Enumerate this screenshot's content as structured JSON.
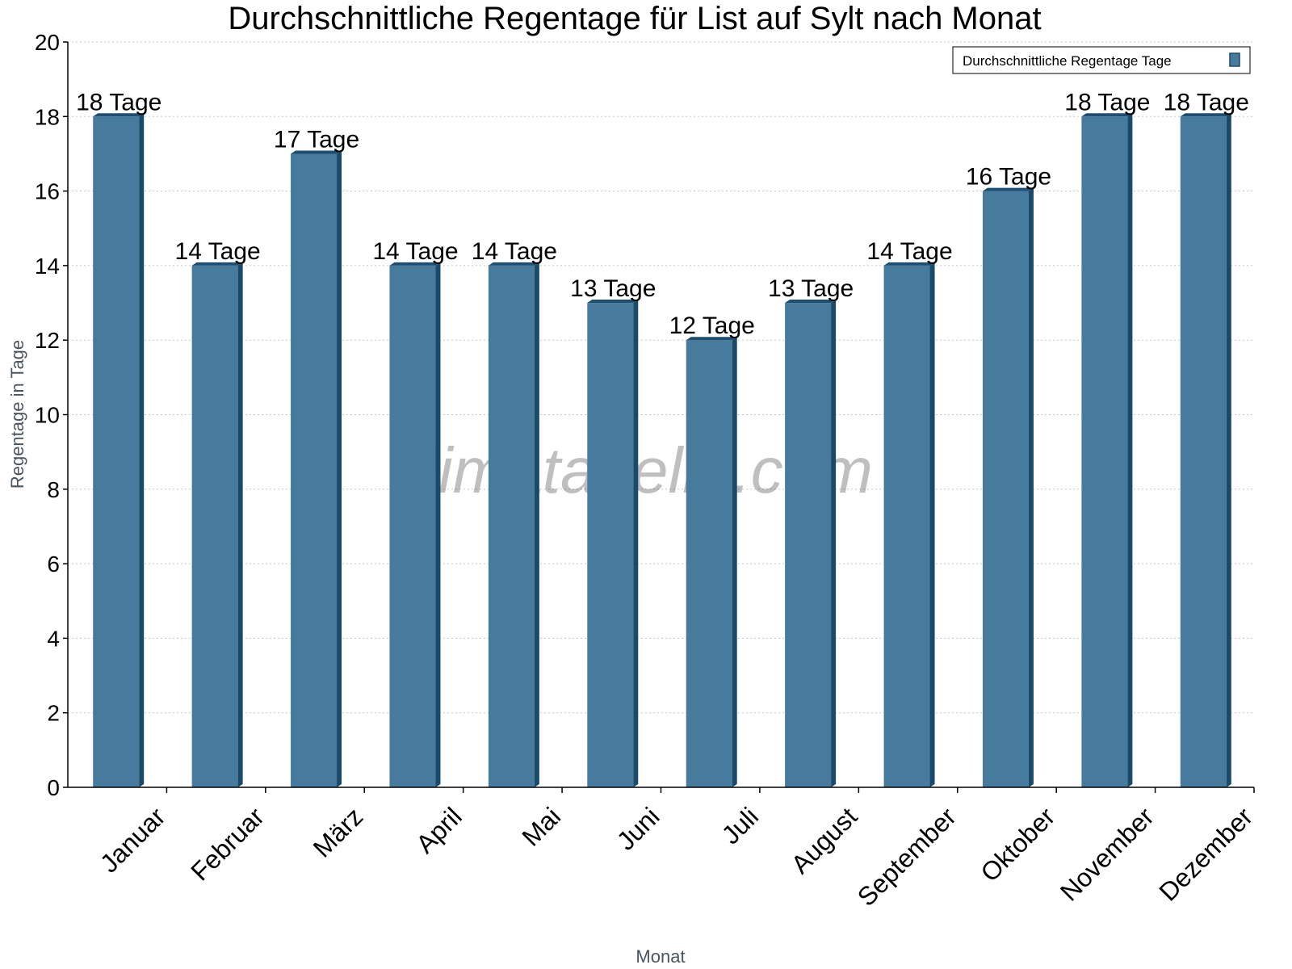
{
  "chart_data": {
    "type": "bar",
    "title": "Durchschnittliche Regentage für List auf Sylt nach Monat",
    "xlabel": "Monat",
    "ylabel": "Regentage in Tage",
    "ylim": [
      0,
      20
    ],
    "yticks": [
      0,
      2,
      4,
      6,
      8,
      10,
      12,
      14,
      16,
      18,
      20
    ],
    "grid": true,
    "legend_position": "top-right",
    "categories": [
      "Januar",
      "Februar",
      "März",
      "April",
      "Mai",
      "Juni",
      "Juli",
      "August",
      "September",
      "Oktober",
      "November",
      "Dezember"
    ],
    "series": [
      {
        "name": "Durchschnittliche Regentage Tage",
        "values": [
          18,
          14,
          17,
          14,
          14,
          13,
          12,
          13,
          14,
          16,
          18,
          18
        ],
        "data_labels": [
          "18 Tage",
          "14 Tage",
          "17 Tage",
          "14 Tage",
          "14 Tage",
          "13 Tage",
          "12 Tage",
          "13 Tage",
          "14 Tage",
          "16 Tage",
          "18 Tage",
          "18 Tage"
        ],
        "color": "#467b9e"
      }
    ],
    "watermark": "klimatabelle.com"
  }
}
